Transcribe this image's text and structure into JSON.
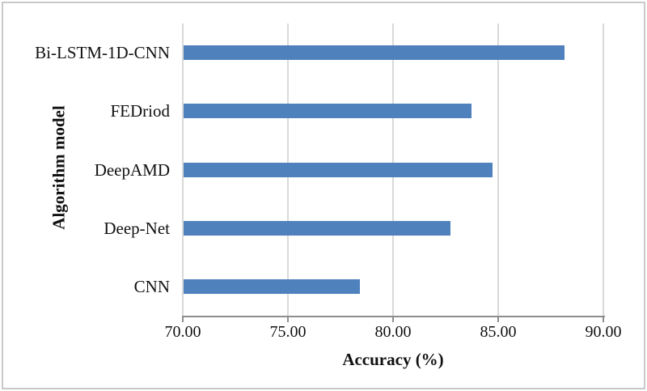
{
  "chart_data": {
    "type": "bar",
    "orientation": "horizontal",
    "title": "",
    "xlabel": "Accuracy (%)",
    "ylabel": "Algorithm model",
    "categories": [
      "Bi-LSTM-1D-CNN",
      "FEDriod",
      "DeepAMD",
      "Deep-Net",
      "CNN"
    ],
    "values": [
      88.1,
      83.7,
      84.7,
      82.7,
      78.4
    ],
    "xlim": [
      70,
      90
    ],
    "xticks": [
      70,
      75,
      80,
      85,
      90
    ],
    "xtick_labels": [
      "70.00",
      "75.00",
      "80.00",
      "85.00",
      "90.00"
    ],
    "grid": true,
    "legend": false,
    "colors": {
      "bar": "#4f81bd",
      "gridline": "#d9d9d9",
      "axis": "#8e8e8e",
      "text": "#111111"
    }
  }
}
